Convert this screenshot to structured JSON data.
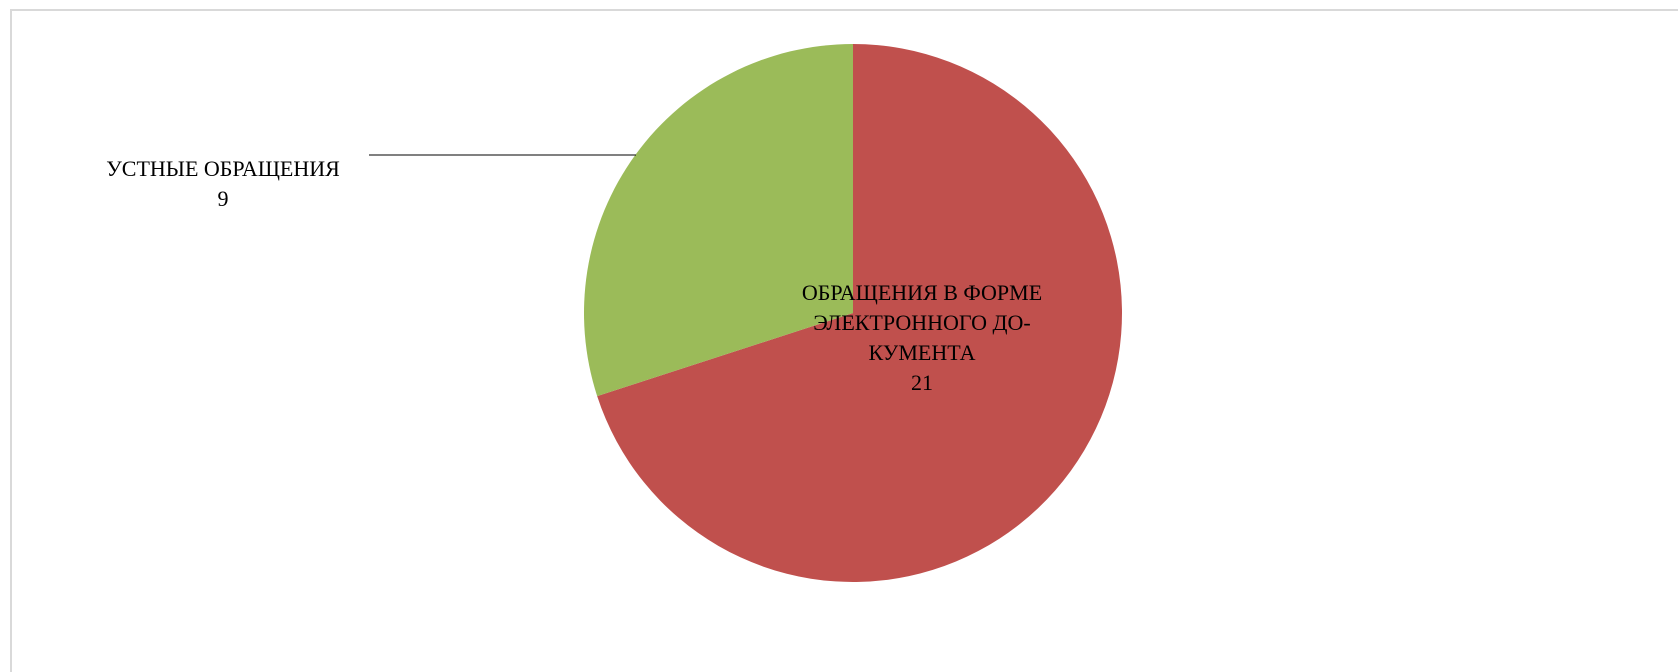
{
  "chart_data": {
    "type": "pie",
    "title": "",
    "categories": [
      "УСТНЫЕ ОБРАЩЕНИЯ",
      "ОБРАЩЕНИЯ В ФОРМЕ ЭЛЕКТРОННОГО ДОКУМЕНТА"
    ],
    "values": [
      9,
      21
    ],
    "colors": [
      "#9bbb59",
      "#c0504d"
    ],
    "labels": [
      {
        "lines": [
          "УСТНЫЕ ОБРАЩЕНИЯ"
        ],
        "value": "9"
      },
      {
        "lines": [
          "ОБРАЩЕНИЯ В ФОРМЕ",
          "ЭЛЕКТРОННОГО ДО-",
          "КУМЕНТА"
        ],
        "value": "21"
      }
    ],
    "legend": "none",
    "start_angle": "top, clockwise from the larger slice"
  }
}
